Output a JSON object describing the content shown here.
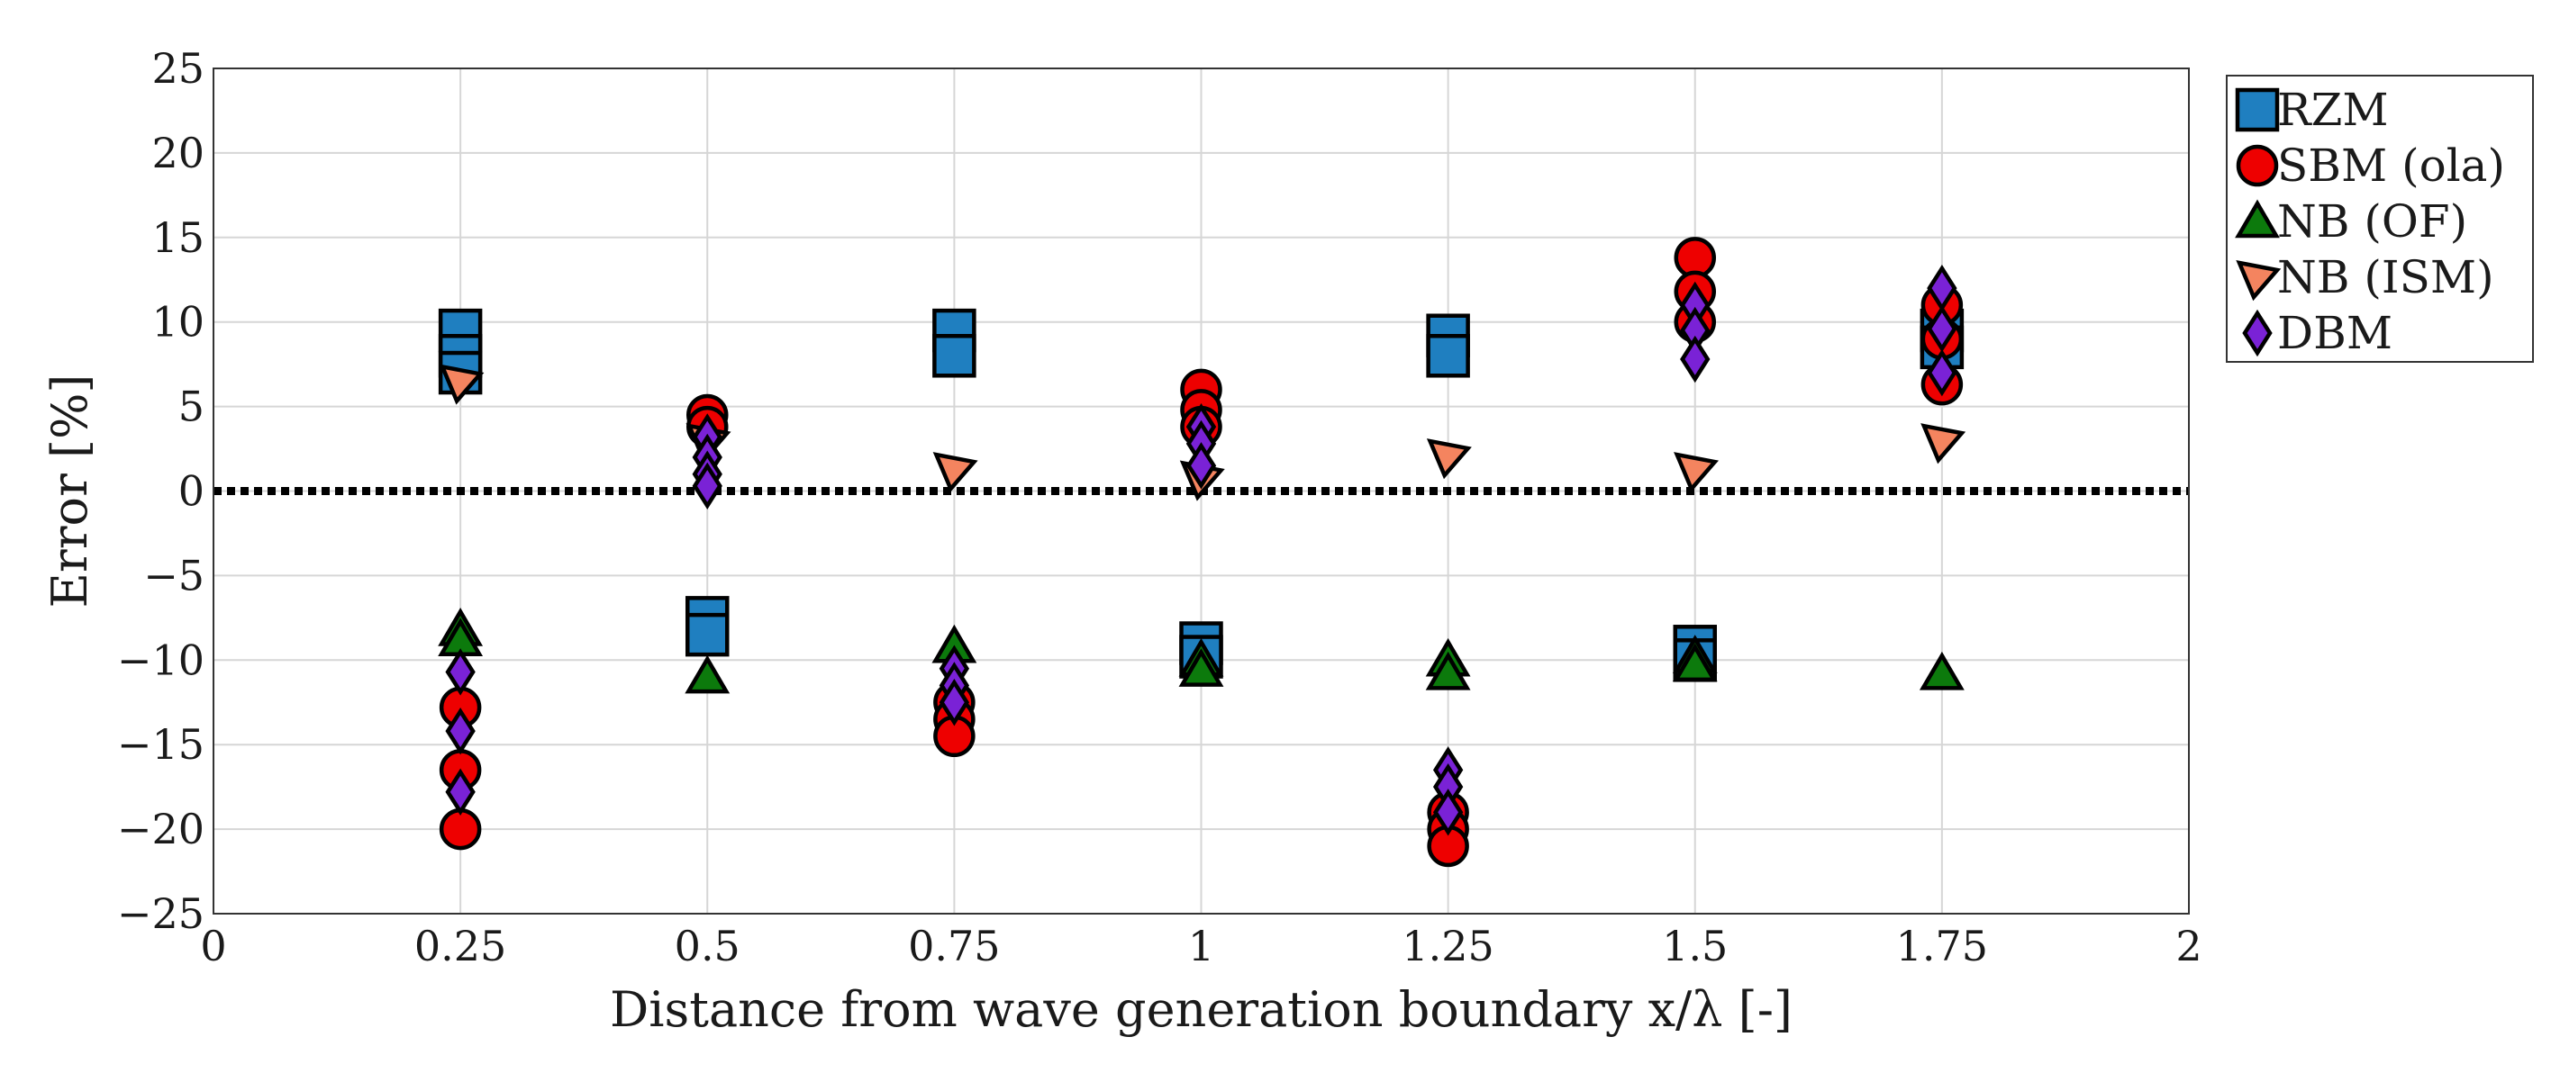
{
  "chart_data": {
    "type": "scatter",
    "title": "",
    "xlabel": "Distance from wave generation boundary x/λ [-]",
    "ylabel": "Error [%]",
    "xlim": [
      0,
      2
    ],
    "ylim": [
      -25,
      25
    ],
    "grid": true,
    "legend_position": "outside-top-right",
    "reference_line": {
      "y": 0,
      "style": "dotted",
      "color": "#000000"
    },
    "x_ticks": [
      {
        "value": 0,
        "label": "0"
      },
      {
        "value": 0.25,
        "label": "0.25"
      },
      {
        "value": 0.5,
        "label": "0.5"
      },
      {
        "value": 0.75,
        "label": "0.75"
      },
      {
        "value": 1,
        "label": "1"
      },
      {
        "value": 1.25,
        "label": "1.25"
      },
      {
        "value": 1.5,
        "label": "1.5"
      },
      {
        "value": 1.75,
        "label": "1.75"
      },
      {
        "value": 2,
        "label": "2"
      }
    ],
    "y_ticks": [
      {
        "value": 25,
        "label": "25"
      },
      {
        "value": 20,
        "label": "20"
      },
      {
        "value": 15,
        "label": "15"
      },
      {
        "value": 10,
        "label": "10"
      },
      {
        "value": 5,
        "label": "5"
      },
      {
        "value": 0,
        "label": "0"
      },
      {
        "value": -5,
        "label": "−5"
      },
      {
        "value": -10,
        "label": "−10"
      },
      {
        "value": -15,
        "label": "−15"
      },
      {
        "value": -20,
        "label": "−20"
      },
      {
        "value": -25,
        "label": "−25"
      }
    ],
    "series": [
      {
        "name": "RZM",
        "marker": "square",
        "color": "#1f7fc0",
        "points": [
          {
            "x": 0.25,
            "y": 9.5
          },
          {
            "x": 0.25,
            "y": 8.0
          },
          {
            "x": 0.25,
            "y": 7.0
          },
          {
            "x": 0.5,
            "y": -7.5
          },
          {
            "x": 0.5,
            "y": -8.5
          },
          {
            "x": 0.75,
            "y": 9.5
          },
          {
            "x": 0.75,
            "y": 8.0
          },
          {
            "x": 1,
            "y": -9.0
          },
          {
            "x": 1,
            "y": -9.8
          },
          {
            "x": 1.25,
            "y": 9.2
          },
          {
            "x": 1.25,
            "y": 8.0
          },
          {
            "x": 1.5,
            "y": -9.2
          },
          {
            "x": 1.5,
            "y": -10.0
          },
          {
            "x": 1.75,
            "y": 9.5
          },
          {
            "x": 1.75,
            "y": 8.5
          }
        ]
      },
      {
        "name": "SBM (ola)",
        "marker": "circle",
        "color": "#ee0000",
        "points": [
          {
            "x": 0.25,
            "y": -12.8
          },
          {
            "x": 0.25,
            "y": -16.5
          },
          {
            "x": 0.25,
            "y": -20.0
          },
          {
            "x": 0.5,
            "y": 4.5
          },
          {
            "x": 0.5,
            "y": 3.8
          },
          {
            "x": 0.75,
            "y": -12.5
          },
          {
            "x": 0.75,
            "y": -13.5
          },
          {
            "x": 0.75,
            "y": -14.5
          },
          {
            "x": 1,
            "y": 6.0
          },
          {
            "x": 1,
            "y": 4.8
          },
          {
            "x": 1,
            "y": 3.8
          },
          {
            "x": 1.25,
            "y": -19.0
          },
          {
            "x": 1.25,
            "y": -20.0
          },
          {
            "x": 1.25,
            "y": -21.0
          },
          {
            "x": 1.5,
            "y": 13.8
          },
          {
            "x": 1.5,
            "y": 11.8
          },
          {
            "x": 1.5,
            "y": 10.0
          },
          {
            "x": 1.75,
            "y": 11.0
          },
          {
            "x": 1.75,
            "y": 9.0
          },
          {
            "x": 1.75,
            "y": 6.3
          }
        ]
      },
      {
        "name": "NB (OF)",
        "marker": "triangle-up",
        "color": "#0c7a0c",
        "points": [
          {
            "x": 0.25,
            "y": -8.2
          },
          {
            "x": 0.25,
            "y": -8.8
          },
          {
            "x": 0.5,
            "y": -11.0
          },
          {
            "x": 0.75,
            "y": -9.2
          },
          {
            "x": 1,
            "y": -10.0
          },
          {
            "x": 1,
            "y": -10.6
          },
          {
            "x": 1.25,
            "y": -10.0
          },
          {
            "x": 1.25,
            "y": -10.8
          },
          {
            "x": 1.5,
            "y": -9.8
          },
          {
            "x": 1.5,
            "y": -10.3
          },
          {
            "x": 1.75,
            "y": -10.8
          }
        ]
      },
      {
        "name": "NB (ISM)",
        "marker": "triangle-down-right",
        "color": "#f4845f",
        "points": [
          {
            "x": 0.25,
            "y": 6.5
          },
          {
            "x": 0.5,
            "y": 3.0
          },
          {
            "x": 0.75,
            "y": 1.3
          },
          {
            "x": 1,
            "y": 0.8
          },
          {
            "x": 1.25,
            "y": 2.1
          },
          {
            "x": 1.5,
            "y": 1.3
          },
          {
            "x": 1.75,
            "y": 3.0
          }
        ]
      },
      {
        "name": "DBM",
        "marker": "diamond",
        "color": "#7a22d6",
        "points": [
          {
            "x": 0.25,
            "y": -10.7
          },
          {
            "x": 0.25,
            "y": -14.2
          },
          {
            "x": 0.25,
            "y": -17.8
          },
          {
            "x": 0.5,
            "y": 3.2
          },
          {
            "x": 0.5,
            "y": 2.0
          },
          {
            "x": 0.5,
            "y": 1.0
          },
          {
            "x": 0.5,
            "y": 0.3
          },
          {
            "x": 0.75,
            "y": -10.5
          },
          {
            "x": 0.75,
            "y": -11.5
          },
          {
            "x": 0.75,
            "y": -12.5
          },
          {
            "x": 1,
            "y": 3.8
          },
          {
            "x": 1,
            "y": 2.8
          },
          {
            "x": 1,
            "y": 1.5
          },
          {
            "x": 1.25,
            "y": -16.5
          },
          {
            "x": 1.25,
            "y": -17.5
          },
          {
            "x": 1.25,
            "y": -19.0
          },
          {
            "x": 1.5,
            "y": 11.0
          },
          {
            "x": 1.5,
            "y": 9.5
          },
          {
            "x": 1.5,
            "y": 7.8
          },
          {
            "x": 1.75,
            "y": 12.0
          },
          {
            "x": 1.75,
            "y": 9.6
          },
          {
            "x": 1.75,
            "y": 7.0
          }
        ]
      }
    ]
  }
}
